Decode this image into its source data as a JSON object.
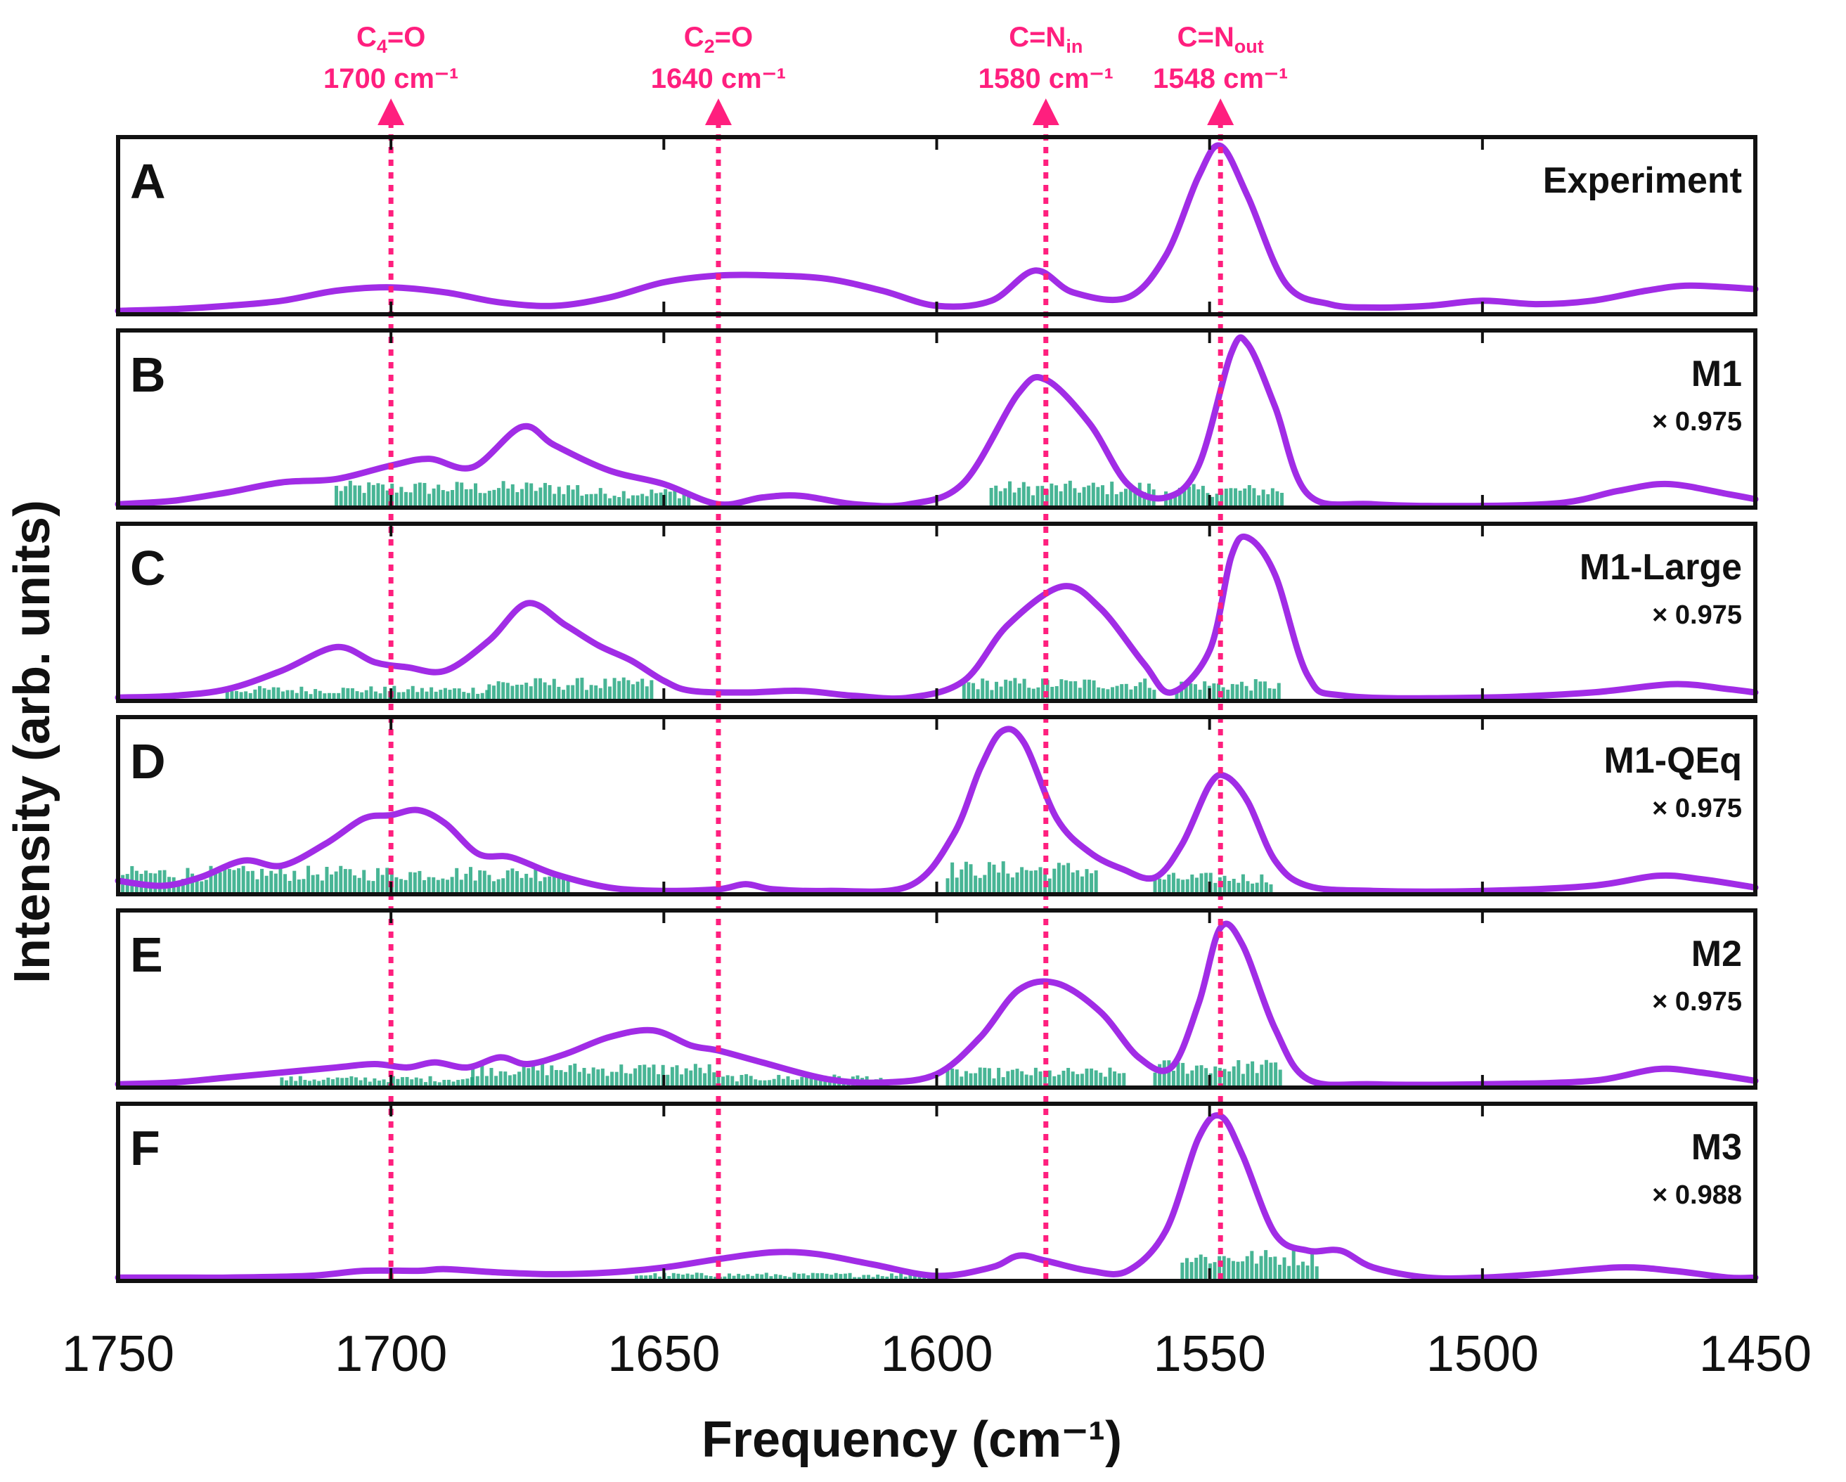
{
  "chart_data": {
    "type": "line",
    "xlabel": "Frequency (cm⁻¹)",
    "ylabel": "Intensity (arb. units)",
    "xlim": [
      1750,
      1450
    ],
    "x_direction": "reversed",
    "x_ticks": [
      1750,
      1700,
      1650,
      1600,
      1550,
      1500,
      1450
    ],
    "x_tick_labels": [
      "1750",
      "1700",
      "1650",
      "1600",
      "1550",
      "1500",
      "1450"
    ],
    "colors": {
      "curve": "#a12ce6",
      "sticks": "#1aa37a",
      "markers": "#ff1f7e",
      "frame": "#111111"
    },
    "markers": [
      {
        "name": "c4o",
        "label_base": "C",
        "label_sub": "4",
        "label_rest": "=O",
        "position": 1700,
        "position_label": "1700 cm⁻¹"
      },
      {
        "name": "c2o",
        "label_base": "C",
        "label_sub": "2",
        "label_rest": "=O",
        "position": 1640,
        "position_label": "1640 cm⁻¹"
      },
      {
        "name": "cnin",
        "label_base": "C=N",
        "label_sub": "in",
        "label_rest": "",
        "position": 1580,
        "position_label": "1580 cm⁻¹"
      },
      {
        "name": "cnout",
        "label_base": "C=N",
        "label_sub": "out",
        "label_rest": "",
        "position": 1548,
        "position_label": "1548 cm⁻¹"
      }
    ],
    "panels": [
      {
        "letter": "A",
        "label": "Experiment",
        "scale": "",
        "curve": [
          [
            1750,
            0.02
          ],
          [
            1740,
            0.03
          ],
          [
            1730,
            0.05
          ],
          [
            1720,
            0.08
          ],
          [
            1710,
            0.14
          ],
          [
            1700,
            0.16
          ],
          [
            1690,
            0.13
          ],
          [
            1680,
            0.07
          ],
          [
            1670,
            0.05
          ],
          [
            1660,
            0.1
          ],
          [
            1650,
            0.19
          ],
          [
            1640,
            0.23
          ],
          [
            1630,
            0.23
          ],
          [
            1620,
            0.21
          ],
          [
            1610,
            0.14
          ],
          [
            1600,
            0.05
          ],
          [
            1590,
            0.08
          ],
          [
            1582,
            0.26
          ],
          [
            1575,
            0.13
          ],
          [
            1565,
            0.1
          ],
          [
            1558,
            0.35
          ],
          [
            1552,
            0.82
          ],
          [
            1548,
            1.0
          ],
          [
            1543,
            0.7
          ],
          [
            1536,
            0.18
          ],
          [
            1528,
            0.06
          ],
          [
            1520,
            0.04
          ],
          [
            1510,
            0.05
          ],
          [
            1500,
            0.08
          ],
          [
            1490,
            0.06
          ],
          [
            1480,
            0.08
          ],
          [
            1470,
            0.14
          ],
          [
            1462,
            0.17
          ],
          [
            1450,
            0.15
          ]
        ],
        "sticks": []
      },
      {
        "letter": "B",
        "label": "M1",
        "scale": "× 0.975",
        "curve": [
          [
            1750,
            0.02
          ],
          [
            1740,
            0.04
          ],
          [
            1730,
            0.09
          ],
          [
            1720,
            0.15
          ],
          [
            1710,
            0.17
          ],
          [
            1700,
            0.25
          ],
          [
            1693,
            0.29
          ],
          [
            1685,
            0.24
          ],
          [
            1676,
            0.48
          ],
          [
            1670,
            0.37
          ],
          [
            1660,
            0.22
          ],
          [
            1650,
            0.14
          ],
          [
            1640,
            0.02
          ],
          [
            1632,
            0.06
          ],
          [
            1625,
            0.07
          ],
          [
            1615,
            0.02
          ],
          [
            1605,
            0.02
          ],
          [
            1595,
            0.15
          ],
          [
            1585,
            0.68
          ],
          [
            1580,
            0.76
          ],
          [
            1572,
            0.5
          ],
          [
            1565,
            0.14
          ],
          [
            1558,
            0.06
          ],
          [
            1552,
            0.25
          ],
          [
            1546,
            0.92
          ],
          [
            1543,
            0.97
          ],
          [
            1538,
            0.6
          ],
          [
            1532,
            0.08
          ],
          [
            1520,
            0.02
          ],
          [
            1500,
            0.01
          ],
          [
            1485,
            0.03
          ],
          [
            1475,
            0.1
          ],
          [
            1466,
            0.14
          ],
          [
            1455,
            0.08
          ],
          [
            1450,
            0.05
          ]
        ],
        "sticks": [
          [
            1710,
            1665,
            0.16
          ],
          [
            1665,
            1645,
            0.12
          ],
          [
            1590,
            1560,
            0.16
          ],
          [
            1558,
            1536,
            0.14
          ]
        ]
      },
      {
        "letter": "C",
        "label": "M1-Large",
        "scale": "× 0.975",
        "curve": [
          [
            1750,
            0.02
          ],
          [
            1740,
            0.03
          ],
          [
            1730,
            0.07
          ],
          [
            1720,
            0.18
          ],
          [
            1710,
            0.32
          ],
          [
            1703,
            0.23
          ],
          [
            1697,
            0.2
          ],
          [
            1690,
            0.18
          ],
          [
            1682,
            0.36
          ],
          [
            1675,
            0.58
          ],
          [
            1668,
            0.45
          ],
          [
            1662,
            0.33
          ],
          [
            1656,
            0.24
          ],
          [
            1650,
            0.12
          ],
          [
            1645,
            0.06
          ],
          [
            1635,
            0.05
          ],
          [
            1625,
            0.06
          ],
          [
            1615,
            0.03
          ],
          [
            1605,
            0.02
          ],
          [
            1595,
            0.12
          ],
          [
            1587,
            0.45
          ],
          [
            1577,
            0.68
          ],
          [
            1570,
            0.55
          ],
          [
            1562,
            0.22
          ],
          [
            1557,
            0.05
          ],
          [
            1550,
            0.3
          ],
          [
            1546,
            0.86
          ],
          [
            1543,
            0.97
          ],
          [
            1538,
            0.75
          ],
          [
            1532,
            0.15
          ],
          [
            1525,
            0.03
          ],
          [
            1500,
            0.02
          ],
          [
            1480,
            0.05
          ],
          [
            1465,
            0.1
          ],
          [
            1455,
            0.07
          ],
          [
            1450,
            0.05
          ]
        ],
        "sticks": [
          [
            1730,
            1682,
            0.09
          ],
          [
            1682,
            1652,
            0.14
          ],
          [
            1595,
            1560,
            0.14
          ],
          [
            1556,
            1537,
            0.13
          ]
        ]
      },
      {
        "letter": "D",
        "label": "M1-QEq",
        "scale": "× 0.975",
        "curve": [
          [
            1750,
            0.08
          ],
          [
            1742,
            0.05
          ],
          [
            1735,
            0.1
          ],
          [
            1727,
            0.2
          ],
          [
            1720,
            0.17
          ],
          [
            1712,
            0.3
          ],
          [
            1705,
            0.45
          ],
          [
            1700,
            0.47
          ],
          [
            1695,
            0.5
          ],
          [
            1690,
            0.42
          ],
          [
            1684,
            0.24
          ],
          [
            1678,
            0.22
          ],
          [
            1670,
            0.12
          ],
          [
            1660,
            0.04
          ],
          [
            1650,
            0.02
          ],
          [
            1640,
            0.03
          ],
          [
            1635,
            0.06
          ],
          [
            1630,
            0.03
          ],
          [
            1620,
            0.02
          ],
          [
            1605,
            0.05
          ],
          [
            1597,
            0.35
          ],
          [
            1592,
            0.75
          ],
          [
            1588,
            0.97
          ],
          [
            1584,
            0.9
          ],
          [
            1578,
            0.45
          ],
          [
            1572,
            0.25
          ],
          [
            1566,
            0.15
          ],
          [
            1560,
            0.1
          ],
          [
            1555,
            0.3
          ],
          [
            1550,
            0.65
          ],
          [
            1547,
            0.7
          ],
          [
            1543,
            0.55
          ],
          [
            1538,
            0.2
          ],
          [
            1532,
            0.05
          ],
          [
            1520,
            0.02
          ],
          [
            1500,
            0.02
          ],
          [
            1480,
            0.05
          ],
          [
            1468,
            0.11
          ],
          [
            1460,
            0.09
          ],
          [
            1450,
            0.04
          ]
        ],
        "sticks": [
          [
            1750,
            1667,
            0.17
          ],
          [
            1598,
            1570,
            0.2
          ],
          [
            1560,
            1538,
            0.13
          ]
        ]
      },
      {
        "letter": "E",
        "label": "M2",
        "scale": "× 0.975",
        "curve": [
          [
            1750,
            0.02
          ],
          [
            1740,
            0.03
          ],
          [
            1730,
            0.06
          ],
          [
            1720,
            0.09
          ],
          [
            1710,
            0.12
          ],
          [
            1703,
            0.14
          ],
          [
            1697,
            0.12
          ],
          [
            1692,
            0.15
          ],
          [
            1686,
            0.12
          ],
          [
            1680,
            0.18
          ],
          [
            1675,
            0.14
          ],
          [
            1668,
            0.2
          ],
          [
            1660,
            0.3
          ],
          [
            1652,
            0.34
          ],
          [
            1645,
            0.25
          ],
          [
            1640,
            0.22
          ],
          [
            1632,
            0.15
          ],
          [
            1620,
            0.05
          ],
          [
            1610,
            0.03
          ],
          [
            1600,
            0.08
          ],
          [
            1592,
            0.3
          ],
          [
            1585,
            0.58
          ],
          [
            1578,
            0.62
          ],
          [
            1570,
            0.45
          ],
          [
            1563,
            0.18
          ],
          [
            1557,
            0.12
          ],
          [
            1552,
            0.5
          ],
          [
            1548,
            0.95
          ],
          [
            1544,
            0.85
          ],
          [
            1538,
            0.35
          ],
          [
            1532,
            0.05
          ],
          [
            1520,
            0.02
          ],
          [
            1500,
            0.02
          ],
          [
            1480,
            0.04
          ],
          [
            1468,
            0.11
          ],
          [
            1460,
            0.09
          ],
          [
            1450,
            0.04
          ]
        ],
        "sticks": [
          [
            1720,
            1685,
            0.07
          ],
          [
            1685,
            1640,
            0.15
          ],
          [
            1640,
            1610,
            0.08
          ],
          [
            1598,
            1565,
            0.12
          ],
          [
            1560,
            1537,
            0.17
          ]
        ]
      },
      {
        "letter": "F",
        "label": "M3",
        "scale": "× 0.988",
        "curve": [
          [
            1750,
            0.02
          ],
          [
            1740,
            0.02
          ],
          [
            1730,
            0.02
          ],
          [
            1715,
            0.03
          ],
          [
            1705,
            0.06
          ],
          [
            1695,
            0.06
          ],
          [
            1690,
            0.07
          ],
          [
            1680,
            0.05
          ],
          [
            1670,
            0.04
          ],
          [
            1660,
            0.05
          ],
          [
            1650,
            0.08
          ],
          [
            1640,
            0.13
          ],
          [
            1630,
            0.17
          ],
          [
            1622,
            0.16
          ],
          [
            1612,
            0.1
          ],
          [
            1600,
            0.03
          ],
          [
            1590,
            0.08
          ],
          [
            1585,
            0.15
          ],
          [
            1580,
            0.12
          ],
          [
            1572,
            0.06
          ],
          [
            1565,
            0.06
          ],
          [
            1558,
            0.3
          ],
          [
            1552,
            0.85
          ],
          [
            1548,
            0.98
          ],
          [
            1544,
            0.75
          ],
          [
            1538,
            0.28
          ],
          [
            1532,
            0.18
          ],
          [
            1526,
            0.18
          ],
          [
            1520,
            0.08
          ],
          [
            1510,
            0.02
          ],
          [
            1500,
            0.02
          ],
          [
            1490,
            0.04
          ],
          [
            1475,
            0.08
          ],
          [
            1465,
            0.06
          ],
          [
            1455,
            0.02
          ],
          [
            1450,
            0.02
          ]
        ],
        "sticks": [
          [
            1655,
            1600,
            0.05
          ],
          [
            1555,
            1530,
            0.19
          ]
        ]
      }
    ]
  }
}
